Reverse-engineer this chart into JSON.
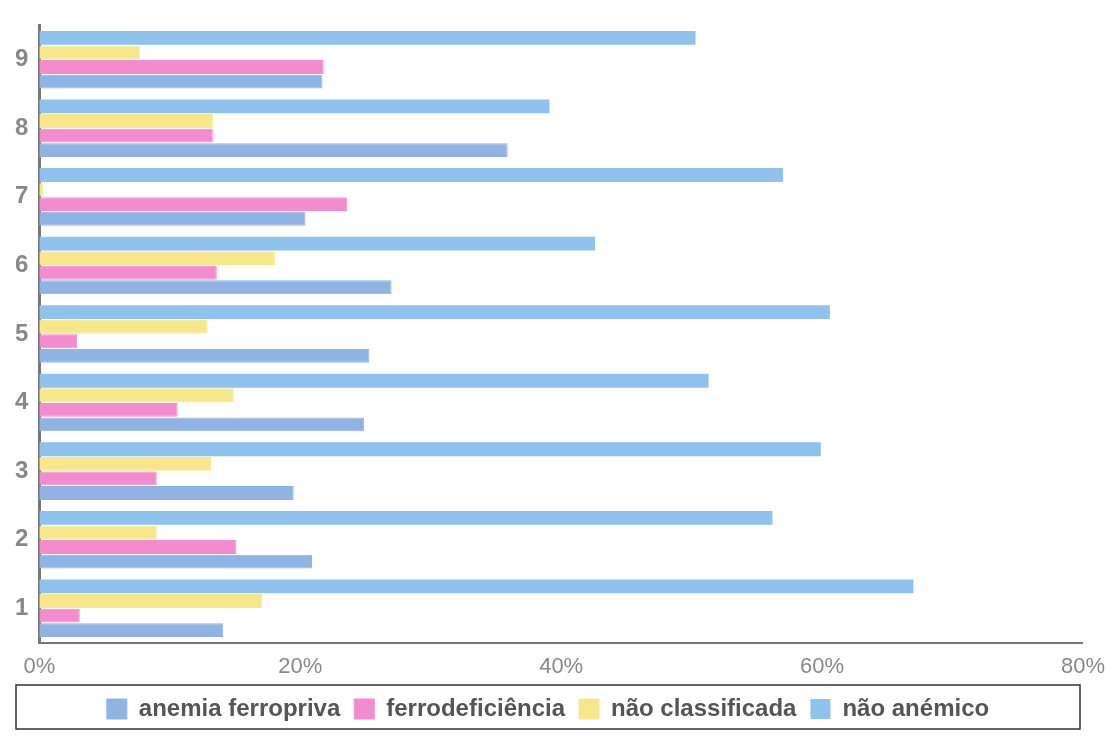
{
  "chart_data": {
    "type": "bar",
    "orientation": "horizontal",
    "categories": [
      "9",
      "8",
      "7",
      "6",
      "5",
      "4",
      "3",
      "2",
      "1"
    ],
    "series": [
      {
        "name": "anemia ferropriva",
        "color": "#8fb4e3",
        "values": [
          21.7,
          35.9,
          20.4,
          27.0,
          25.3,
          24.9,
          19.5,
          20.9,
          14.1
        ]
      },
      {
        "name": "ferrodeficiência",
        "color": "#f28ccf",
        "values": [
          21.8,
          13.3,
          23.6,
          13.6,
          2.9,
          10.6,
          9.0,
          15.1,
          3.1
        ]
      },
      {
        "name": "não classificada",
        "color": "#f7e68a",
        "values": [
          7.7,
          13.3,
          0.3,
          18.1,
          12.9,
          14.9,
          13.2,
          9.0,
          17.1
        ]
      },
      {
        "name": "não anémico",
        "color": "#8fc2ec",
        "values": [
          50.3,
          39.1,
          57.0,
          42.6,
          60.6,
          51.3,
          59.9,
          56.2,
          67.0
        ]
      }
    ],
    "xlim": [
      0,
      80
    ],
    "xticks": [
      {
        "value": 0,
        "label": "0%"
      },
      {
        "value": 20,
        "label": "20%"
      },
      {
        "value": 40,
        "label": "40%"
      },
      {
        "value": 60,
        "label": "60%"
      },
      {
        "value": 80,
        "label": "80%"
      }
    ],
    "grid": false,
    "legend": "bottom"
  }
}
